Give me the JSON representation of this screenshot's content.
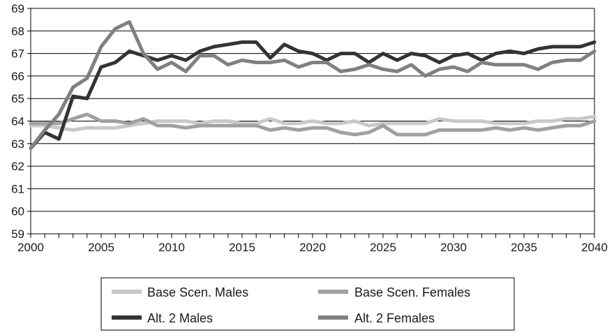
{
  "chart_data": {
    "type": "line",
    "title": "",
    "xlabel": "",
    "ylabel": "",
    "xlim": [
      2000,
      2040
    ],
    "ylim": [
      59,
      69
    ],
    "grid": "horizontal",
    "legend_position": "bottom",
    "x_ticks": [
      "2000",
      "2005",
      "2010",
      "2015",
      "2020",
      "2025",
      "2030",
      "2035",
      "2040"
    ],
    "y_ticks": [
      "59",
      "60",
      "61",
      "62",
      "63",
      "64",
      "65",
      "66",
      "67",
      "68",
      "69"
    ],
    "x": [
      2000,
      2001,
      2002,
      2003,
      2004,
      2005,
      2006,
      2007,
      2008,
      2009,
      2010,
      2011,
      2012,
      2013,
      2014,
      2015,
      2016,
      2017,
      2018,
      2019,
      2020,
      2021,
      2022,
      2023,
      2024,
      2025,
      2026,
      2027,
      2028,
      2029,
      2030,
      2031,
      2032,
      2033,
      2034,
      2035,
      2036,
      2037,
      2038,
      2039,
      2040
    ],
    "series": [
      {
        "name": "Base Scen. Males",
        "color": "#c8c8c8",
        "values": [
          63.8,
          63.8,
          63.7,
          63.6,
          63.7,
          63.7,
          63.7,
          63.8,
          63.9,
          64.0,
          64.0,
          64.0,
          63.9,
          64.0,
          64.0,
          63.9,
          63.9,
          64.1,
          63.9,
          63.9,
          64.0,
          63.9,
          63.9,
          64.0,
          63.8,
          63.9,
          63.9,
          63.9,
          63.9,
          64.1,
          64.0,
          64.0,
          64.0,
          63.9,
          63.9,
          63.9,
          64.0,
          64.0,
          64.1,
          64.1,
          64.2
        ]
      },
      {
        "name": "Base Scen. Females",
        "color": "#a0a0a0",
        "values": [
          63.9,
          63.9,
          63.9,
          64.1,
          64.3,
          64.0,
          64.0,
          63.9,
          64.1,
          63.8,
          63.8,
          63.7,
          63.8,
          63.8,
          63.8,
          63.8,
          63.8,
          63.6,
          63.7,
          63.6,
          63.7,
          63.7,
          63.5,
          63.4,
          63.5,
          63.8,
          63.4,
          63.4,
          63.4,
          63.6,
          63.6,
          63.6,
          63.6,
          63.7,
          63.6,
          63.7,
          63.6,
          63.7,
          63.8,
          63.8,
          64.0
        ]
      },
      {
        "name": "Alt. 2 Males",
        "color": "#333333",
        "values": [
          62.8,
          63.5,
          63.2,
          65.1,
          65.0,
          66.4,
          66.6,
          67.1,
          66.9,
          66.7,
          66.9,
          66.7,
          67.1,
          67.3,
          67.4,
          67.5,
          67.5,
          66.8,
          67.4,
          67.1,
          67.0,
          66.7,
          67.0,
          67.0,
          66.6,
          67.0,
          66.7,
          67.0,
          66.9,
          66.6,
          66.9,
          67.0,
          66.7,
          67.0,
          67.1,
          67.0,
          67.2,
          67.3,
          67.3,
          67.3,
          67.5
        ]
      },
      {
        "name": "Alt. 2 Females",
        "color": "#808080",
        "values": [
          62.8,
          63.6,
          64.3,
          65.5,
          65.9,
          67.3,
          68.1,
          68.4,
          67.0,
          66.3,
          66.6,
          66.2,
          66.9,
          66.9,
          66.5,
          66.7,
          66.6,
          66.6,
          66.7,
          66.4,
          66.6,
          66.6,
          66.2,
          66.3,
          66.5,
          66.3,
          66.2,
          66.5,
          66.0,
          66.3,
          66.4,
          66.2,
          66.6,
          66.5,
          66.5,
          66.5,
          66.3,
          66.6,
          66.7,
          66.7,
          67.1
        ]
      }
    ]
  }
}
